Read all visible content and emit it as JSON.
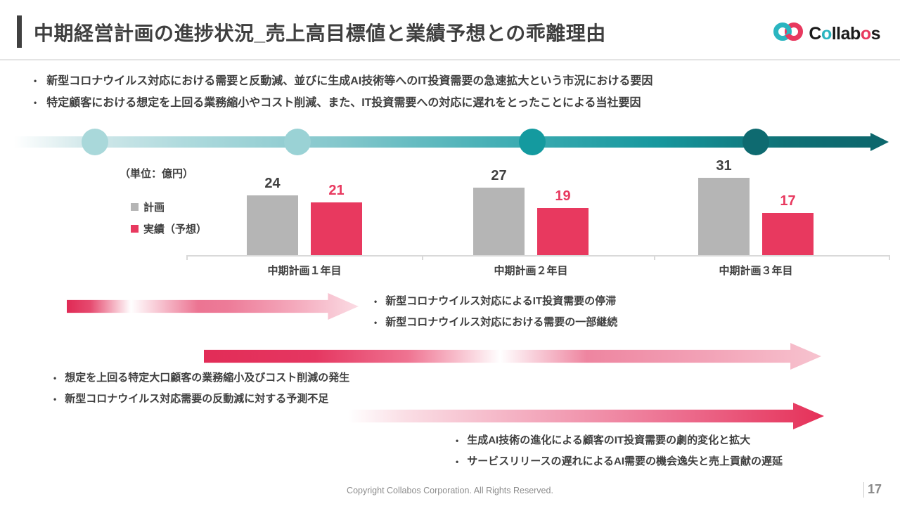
{
  "header": {
    "title": "中期経営計画の進捗状況_売上高目標値と業績予想との乖離理由",
    "logo": {
      "name": "Collabos",
      "text_parts": {
        "c": "C",
        "o1": "o",
        "llab": "llab",
        "o2": "o",
        "s": "s"
      },
      "teal": "#2ab5c0",
      "pink": "#e8395f"
    }
  },
  "top_bullets": [
    "新型コロナウイルス対応における需要と反動減、並びに生成AI技術等へのIT投資需要の急速拡大という市況における要因",
    "特定顧客における想定を上回る業務縮小やコスト削減、また、IT投資需要への対応に遅れをとったことによる当社要因"
  ],
  "timeline": {
    "circle_colors": [
      "#a9d8da",
      "#9ad2d5",
      "#149a9f",
      "#0e6a70"
    ]
  },
  "chart_data": {
    "type": "bar",
    "title": "",
    "unit_label": "（単位：億円）",
    "categories": [
      "中期計画１年目",
      "中期計画２年目",
      "中期計画３年目"
    ],
    "series": [
      {
        "name": "計画",
        "color": "#b5b5b5",
        "label_color": "#404040",
        "values": [
          24,
          27,
          31
        ]
      },
      {
        "name": "実績（予想）",
        "color": "#e8395f",
        "label_color": "#e8395f",
        "values": [
          21,
          19,
          17
        ]
      }
    ],
    "ylim": [
      0,
      35
    ],
    "grid": false,
    "legend_position": "left"
  },
  "annotations": [
    {
      "bullets": [
        "新型コロナウイルス対応によるIT投資需要の停滞",
        "新型コロナウイルス対応における需要の一部継続"
      ]
    },
    {
      "bullets": [
        "想定を上回る特定大口顧客の業務縮小及びコスト削減の発生",
        "新型コロナウイルス対応需要の反動減に対する予測不足"
      ]
    },
    {
      "bullets": [
        "生成AI技術の進化による顧客のIT投資需要の劇的変化と拡大",
        "サービスリリースの遅れによるAI需要の機会逸失と売上貢献の遅延"
      ]
    }
  ],
  "footer": {
    "copyright": "Copyright Collabos Corporation. All Rights Reserved.",
    "page": "17"
  }
}
